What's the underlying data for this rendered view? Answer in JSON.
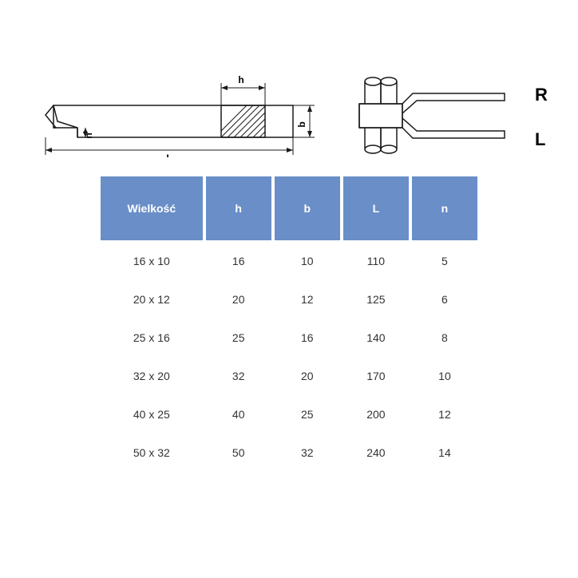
{
  "diagram": {
    "labels": {
      "h": "h",
      "b": "b",
      "L": "L",
      "n": "n",
      "R": "R",
      "Lside": "L"
    },
    "line_color": "#1a1a1a",
    "hatch_color": "#1a1a1a",
    "stroke_width": 1.5
  },
  "table": {
    "header_bg": "#6a8ec7",
    "header_fg": "#ffffff",
    "cell_fg": "#333333",
    "columns": [
      "Wielkość",
      "h",
      "b",
      "L",
      "n"
    ],
    "rows": [
      [
        "16 x 10",
        "16",
        "10",
        "110",
        "5"
      ],
      [
        "20 x 12",
        "20",
        "12",
        "125",
        "6"
      ],
      [
        "25 x 16",
        "25",
        "16",
        "140",
        "8"
      ],
      [
        "32 x 20",
        "32",
        "20",
        "170",
        "10"
      ],
      [
        "40 x 25",
        "40",
        "25",
        "200",
        "12"
      ],
      [
        "50 x 32",
        "50",
        "32",
        "240",
        "14"
      ]
    ]
  }
}
